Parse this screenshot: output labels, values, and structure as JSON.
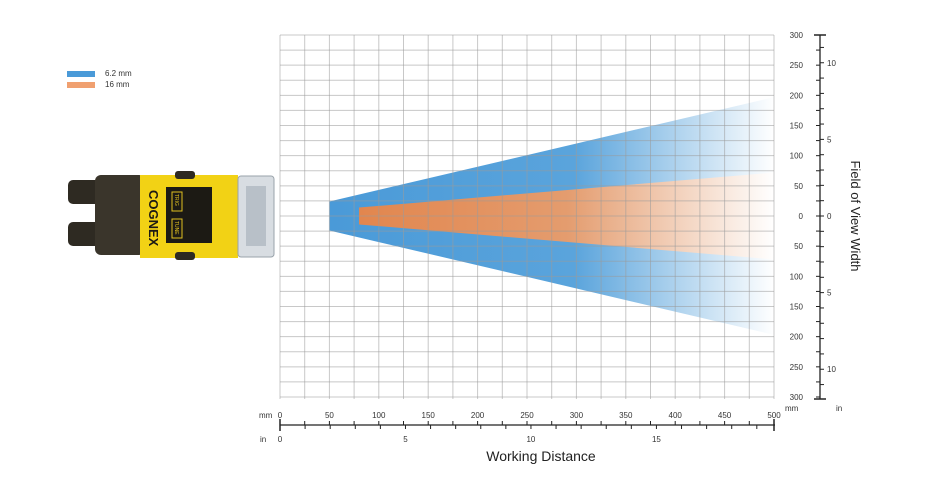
{
  "legend": [
    {
      "label": "6.2 mm",
      "color": "#4a9ad8"
    },
    {
      "label": "16 mm",
      "color": "#e88d58"
    }
  ],
  "camera": {
    "brand": "COGNEX",
    "button_labels": [
      "TRIG",
      "TUNE"
    ]
  },
  "axes": {
    "x_title": "Working Distance",
    "y_title": "Field of View Width",
    "mm_unit": "mm",
    "in_unit": "in"
  },
  "chart_data": {
    "type": "area",
    "xlabel": "Working Distance",
    "ylabel": "Field of View Width",
    "xlim_mm": [
      0,
      500
    ],
    "ylim_mm": [
      -300,
      300
    ],
    "x_ticks_mm": [
      "0",
      "50",
      "100",
      "150",
      "200",
      "250",
      "300",
      "350",
      "400",
      "450",
      "500"
    ],
    "x_ticks_in": [
      "0",
      "5",
      "10",
      "15"
    ],
    "y_ticks_mm": [
      "300",
      "250",
      "200",
      "150",
      "100",
      "50",
      "0",
      "50",
      "100",
      "150",
      "200",
      "250",
      "300"
    ],
    "y_ticks_in": [
      "10",
      "5",
      "0",
      "5",
      "10"
    ],
    "grid": true,
    "legend_position": "top-left",
    "series": [
      {
        "name": "6.2 mm",
        "color": "#4a9ad8",
        "x": [
          50,
          500
        ],
        "half_width": [
          24,
          197
        ]
      },
      {
        "name": "16 mm",
        "color": "#e88d58",
        "x": [
          80,
          500
        ],
        "half_width": [
          14,
          72
        ]
      }
    ]
  }
}
